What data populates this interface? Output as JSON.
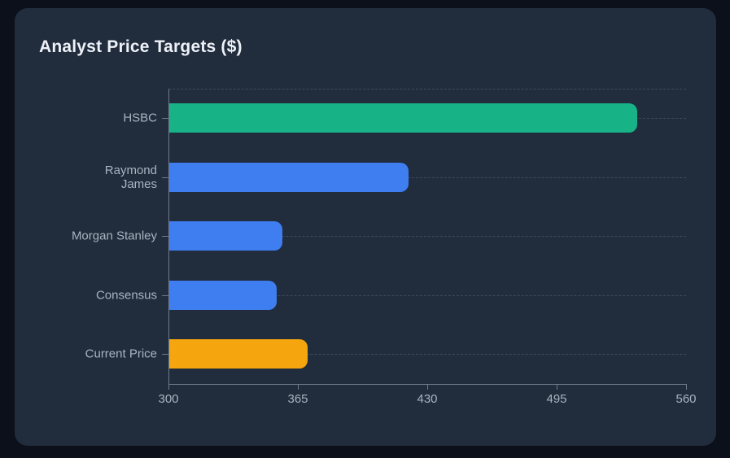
{
  "card": {
    "title": "Analyst Price Targets ($)"
  },
  "chart_data": {
    "type": "bar",
    "orientation": "horizontal",
    "title": "Analyst Price Targets ($)",
    "xlabel": "",
    "ylabel": "",
    "categories": [
      "HSBC",
      "Raymond James",
      "Morgan Stanley",
      "Consensus",
      "Current Price"
    ],
    "values": [
      535,
      420,
      357,
      354,
      369.5
    ],
    "bar_colors": [
      "#17b286",
      "#3e7ef0",
      "#3e7ef0",
      "#3e7ef0",
      "#f5a50d"
    ],
    "xlim": [
      300,
      560
    ],
    "x_ticks": [
      "300",
      "365",
      "430",
      "495",
      "560"
    ],
    "grid": "dashed horizontal gridlines at category centers and plot top",
    "legend": "none",
    "colors": {
      "page_background": "#0b101b",
      "card_background": "#212c3d",
      "title_text": "#eef2f8",
      "axis_text": "#a9b4c1",
      "axis_line": "#6e7a8a",
      "gridline": "#3e4a5e",
      "green_bar": "#17b286",
      "blue_bar": "#3e7ef0",
      "orange_bar": "#f5a50d"
    }
  }
}
